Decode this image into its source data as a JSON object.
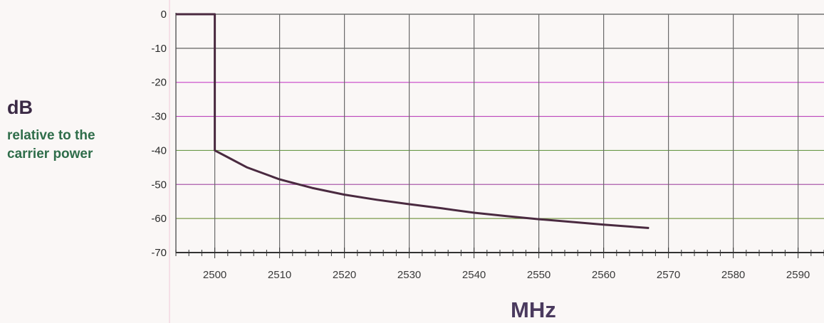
{
  "chart_data": {
    "type": "line",
    "title": "",
    "ylabel": "dB",
    "ylabel_sub": [
      "relative to the",
      "carrier power"
    ],
    "xlabel": "MHz",
    "xlim": [
      2494,
      2594
    ],
    "ylim": [
      -70,
      0
    ],
    "x_ticks": [
      2500,
      2510,
      2520,
      2530,
      2540,
      2550,
      2560,
      2570,
      2580,
      2590
    ],
    "y_ticks": [
      0,
      -10,
      -20,
      -30,
      -40,
      -50,
      -60,
      -70
    ],
    "grid": true,
    "series": [
      {
        "x": [
          2494,
          2500,
          2500,
          2502,
          2505,
          2510,
          2515,
          2520,
          2525,
          2530,
          2535,
          2540,
          2545,
          2550,
          2555,
          2560,
          2567
        ],
        "y": [
          0,
          0,
          -40,
          -42,
          -45,
          -48.5,
          -51,
          -53,
          -54.5,
          -55.8,
          -57,
          -58.3,
          -59.3,
          -60.2,
          -61,
          -61.8,
          -62.8
        ]
      }
    ],
    "colors": {
      "line": "#4a2a40",
      "grid_vertical": "#6a6a6a",
      "grid_horizontal": [
        "#555555",
        "#606060",
        "#cc55cc",
        "#bb44bb",
        "#6a9a4a",
        "#aa5aaa",
        "#7a9a4a",
        "#444444"
      ]
    }
  }
}
